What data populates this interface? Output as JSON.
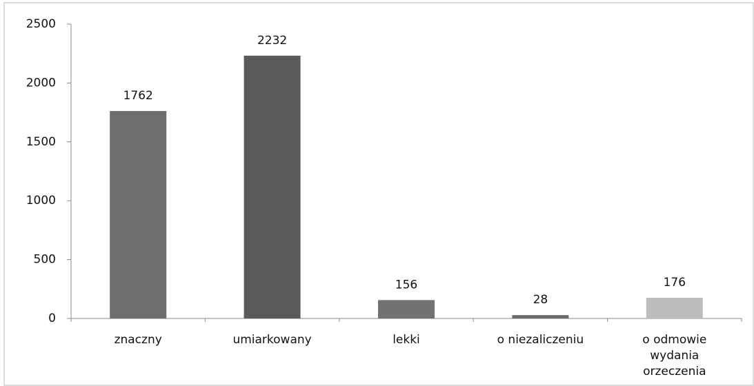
{
  "chart_data": {
    "type": "bar",
    "categories": [
      "znaczny",
      "umiarkowany",
      "lekki",
      "o niezaliczeniu",
      "o odmowie wydania orzeczenia"
    ],
    "values": [
      1762,
      2232,
      156,
      28,
      176
    ],
    "colors": [
      "#6e6e6e",
      "#5a5a5a",
      "#727272",
      "#6a6a6a",
      "#bdbdbd"
    ],
    "ylim": [
      0,
      2500
    ],
    "yticks": [
      0,
      500,
      1000,
      1500,
      2000,
      2500
    ],
    "grid": false
  }
}
